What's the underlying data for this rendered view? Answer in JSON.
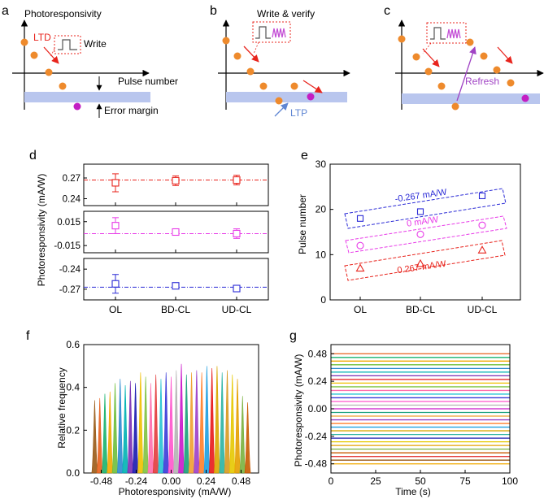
{
  "panel_letters": {
    "a": "a",
    "b": "b",
    "c": "c",
    "d": "d",
    "e": "e",
    "f": "f",
    "g": "g"
  },
  "colors": {
    "dot": "#ee8a2c",
    "magenta_dot": "#c31ec3",
    "band": "#b9c6ee",
    "red": "#e8241d",
    "pink": "#e83be8",
    "blue": "#2b2bd6",
    "write_red": "#ea3a3a",
    "write_purple": "#c44fd6",
    "ltp_blue": "#5f86d3",
    "refresh_purple": "#a042c4"
  },
  "panel_a": {
    "y_label": "Photoresponsivity",
    "x_label": "Pulse number",
    "ltd_label": "LTD",
    "write_label": "Write",
    "margin_label": "Error margin"
  },
  "panel_b": {
    "write_verify_label": "Write & verify",
    "ltp_label": "LTP"
  },
  "panel_c": {
    "refresh_label": "Refresh"
  },
  "chart_data": [
    {
      "id": "d",
      "type": "scatter",
      "ylabel": "Photoresponsivity (mA/W)",
      "categories": [
        "OL",
        "BD-CL",
        "UD-CL"
      ],
      "subplots": [
        {
          "name": "0.267 mA/W",
          "ref": 0.267,
          "ylim": [
            0.23,
            0.29
          ],
          "ticks": [
            0.24,
            0.27
          ],
          "tick_labels": [
            "0.24",
            "0.27"
          ],
          "values": [
            0.263,
            0.266,
            0.267
          ],
          "errors": [
            0.013,
            0.007,
            0.007
          ]
        },
        {
          "name": "0 mA/W",
          "ref": 0.0,
          "ylim": [
            -0.024,
            0.028
          ],
          "ticks": [
            -0.015,
            0.015
          ],
          "tick_labels": [
            "-0.015",
            "0.015"
          ],
          "values": [
            0.01,
            0.002,
            0.0
          ],
          "errors": [
            0.01,
            0.004,
            0.006
          ]
        },
        {
          "name": "-0.267 mA/W",
          "ref": -0.267,
          "ylim": [
            -0.286,
            -0.224
          ],
          "ticks": [
            -0.27,
            -0.24
          ],
          "tick_labels": [
            "-0.27",
            "-0.24"
          ],
          "values": [
            -0.262,
            -0.265,
            -0.269
          ],
          "errors": [
            0.014,
            0.004,
            0.004
          ]
        }
      ]
    },
    {
      "id": "e",
      "type": "scatter",
      "ylabel": "Pulse number",
      "categories": [
        "OL",
        "BD-CL",
        "UD-CL"
      ],
      "ylim": [
        0,
        30
      ],
      "yticks": [
        0,
        10,
        20,
        30
      ],
      "series": [
        {
          "name": "-0.267 mA/W",
          "marker": "square",
          "values": [
            18,
            19.5,
            23
          ]
        },
        {
          "name": "0 mA/W",
          "marker": "circle",
          "values": [
            12,
            14.5,
            16.5
          ]
        },
        {
          "name": "0.267 mA/W",
          "marker": "triangle",
          "values": [
            7,
            8,
            11
          ]
        }
      ]
    },
    {
      "id": "f",
      "type": "area",
      "xlabel": "Photoresponsivity (mA/W)",
      "ylabel": "Relative frequency",
      "xlim": [
        -0.6,
        0.6
      ],
      "ylim": [
        0,
        0.6
      ],
      "xticks": [
        -0.48,
        -0.24,
        0.0,
        0.24,
        0.48
      ],
      "xtick_labels": [
        "-0.48",
        "-0.24",
        "0.00",
        "0.24",
        "0.48"
      ],
      "yticks": [
        0,
        0.2,
        0.4,
        0.6
      ],
      "ytick_labels": [
        "0.0",
        "0.2",
        "0.4",
        "0.6"
      ],
      "centers": [
        -0.525,
        -0.49,
        -0.455,
        -0.42,
        -0.385,
        -0.35,
        -0.315,
        -0.28,
        -0.245,
        -0.21,
        -0.175,
        -0.14,
        -0.105,
        -0.07,
        -0.035,
        0.0,
        0.035,
        0.07,
        0.105,
        0.14,
        0.175,
        0.21,
        0.245,
        0.28,
        0.315,
        0.35,
        0.385,
        0.42,
        0.455,
        0.49,
        0.525
      ],
      "peaks": [
        0.34,
        0.35,
        0.37,
        0.38,
        0.42,
        0.44,
        0.41,
        0.43,
        0.42,
        0.47,
        0.45,
        0.42,
        0.46,
        0.44,
        0.47,
        0.45,
        0.48,
        0.51,
        0.46,
        0.47,
        0.48,
        0.47,
        0.5,
        0.49,
        0.5,
        0.47,
        0.48,
        0.46,
        0.44,
        0.36,
        0.33
      ],
      "colors": [
        "#9a5a16",
        "#e8601c",
        "#1ab36e",
        "#f2a900",
        "#6fbf3c",
        "#2e8bd0",
        "#00b3b3",
        "#7a2fb5",
        "#1a1ab0",
        "#f0c000",
        "#7fc241",
        "#ff6fae",
        "#e23b3b",
        "#27c3d3",
        "#3a3ad8",
        "#ff55cc",
        "#b4b4b4",
        "#ca18ca",
        "#1aa07a",
        "#f0a030",
        "#9c3ec8",
        "#ff7f2a",
        "#1f9fe0",
        "#e81a1a",
        "#d9a600",
        "#2bb3a3",
        "#d89a20",
        "#e6c800",
        "#e5a000",
        "#7ab13e",
        "#c85a00"
      ]
    },
    {
      "id": "g",
      "type": "line",
      "xlabel": "Time (s)",
      "ylabel": "Photoresponsivity (mA/W)",
      "xlim": [
        0,
        100
      ],
      "ylim": [
        -0.56,
        0.56
      ],
      "xticks": [
        0,
        25,
        50,
        75,
        100
      ],
      "xtick_labels": [
        "0",
        "25",
        "50",
        "75",
        "100"
      ],
      "yticks": [
        -0.48,
        -0.24,
        0.0,
        0.24,
        0.48
      ],
      "ytick_labels": [
        "-0.48",
        "-0.24",
        "0.00",
        "0.24",
        "0.48"
      ],
      "levels": [
        0.48,
        0.448,
        0.416,
        0.384,
        0.352,
        0.32,
        0.288,
        0.256,
        0.224,
        0.192,
        0.16,
        0.128,
        0.096,
        0.064,
        0.032,
        0.0,
        -0.032,
        -0.064,
        -0.096,
        -0.128,
        -0.16,
        -0.192,
        -0.224,
        -0.256,
        -0.288,
        -0.32,
        -0.352,
        -0.384,
        -0.416,
        -0.448,
        -0.48
      ],
      "colors": [
        "#e8601c",
        "#1ab36e",
        "#f2a900",
        "#6fbf3c",
        "#2e8bd0",
        "#00b3b3",
        "#7a2fb5",
        "#e81a1a",
        "#f0c000",
        "#7fc241",
        "#ff6fae",
        "#27c3d3",
        "#3a3ad8",
        "#ff55cc",
        "#b4b4b4",
        "#ca18ca",
        "#1aa07a",
        "#f0a030",
        "#9c3ec8",
        "#ff7f2a",
        "#1f9fe0",
        "#d9a600",
        "#2bb3a3",
        "#1a1ab0",
        "#e6c800",
        "#e5a000",
        "#7ab13e",
        "#c85a00",
        "#e23b3b",
        "#9a5a16",
        "#f2a900"
      ]
    }
  ]
}
